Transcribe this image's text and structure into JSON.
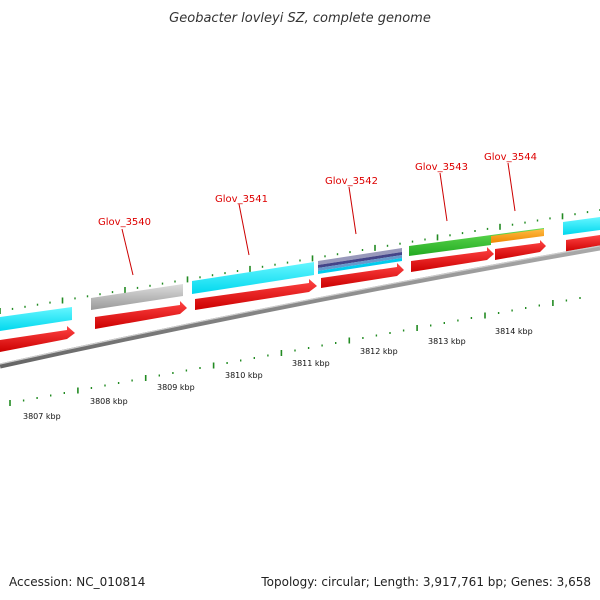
{
  "title": "Geobacter lovleyi SZ, complete genome",
  "footer": {
    "accession": "Accession: NC_010814",
    "summary": "Topology: circular; Length: 3,917,761 bp; Genes: 3,658"
  },
  "genes": [
    {
      "label": "Glov_3540"
    },
    {
      "label": "Glov_3541"
    },
    {
      "label": "Glov_3542"
    },
    {
      "label": "Glov_3543"
    },
    {
      "label": "Glov_3544"
    }
  ],
  "scale_labels": [
    "3807 kbp",
    "3808 kbp",
    "3809 kbp",
    "3810 kbp",
    "3811 kbp",
    "3812 kbp",
    "3813 kbp",
    "3814 kbp"
  ],
  "colors": {
    "cds_arrow": "#ee0000",
    "gene_cyan": "#00eeff",
    "gene_gray": "#bbbbbb",
    "gene_green": "#33cc33",
    "gene_orange": "#ff9900",
    "gene_purple": "#666699",
    "backbone": "#888888",
    "ticks": "#228b22",
    "label_red": "#dd0000"
  }
}
